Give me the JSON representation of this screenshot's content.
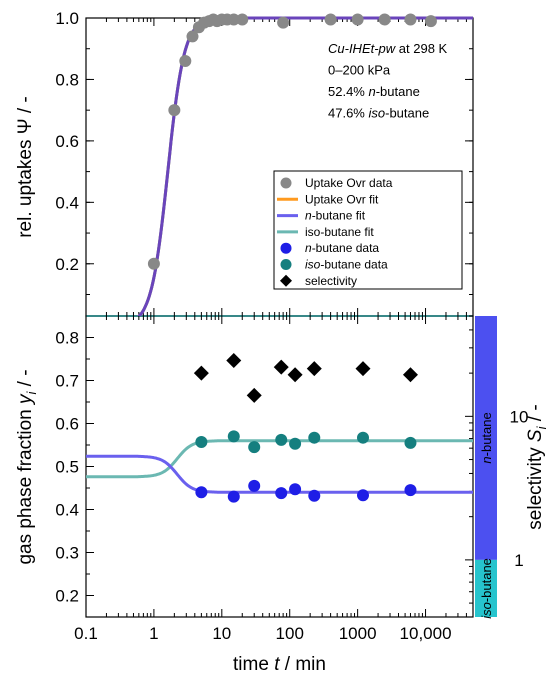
{
  "chart_data": [
    {
      "type": "scatter",
      "panel": "top",
      "ylabel_pre": "rel. uptakes ",
      "ylabel_sym": "Ψ",
      "ylabel_post": " / -",
      "ylim": [
        0.03,
        1.0
      ],
      "yticks": [
        0.2,
        0.4,
        0.6,
        0.8,
        1.0
      ],
      "yticklabels": [
        "0.2",
        "0.4",
        "0.6",
        "0.8",
        "1.0"
      ],
      "xscale": "log",
      "xlim": [
        0.1,
        50000
      ],
      "annotation": [
        {
          "parts": [
            {
              "t": "Cu-IHEt-pw",
              "i": true
            },
            {
              "t": " at 298 K",
              "i": false
            }
          ]
        },
        {
          "parts": [
            {
              "t": "0–200 kPa",
              "i": false
            }
          ]
        },
        {
          "parts": [
            {
              "t": "52.4% ",
              "i": false
            },
            {
              "t": "n",
              "i": true
            },
            {
              "t": "-butane",
              "i": false
            }
          ]
        },
        {
          "parts": [
            {
              "t": "47.6% ",
              "i": false
            },
            {
              "t": "iso",
              "i": true
            },
            {
              "t": "-butane",
              "i": false
            }
          ]
        }
      ],
      "legend_position": "center-right",
      "legend": [
        {
          "kind": "circle",
          "color": "#888888",
          "parts": [
            {
              "t": "Uptake Ovr data",
              "i": false
            }
          ]
        },
        {
          "kind": "line",
          "color": "#ff9a1f",
          "parts": [
            {
              "t": "Uptake Ovr fit",
              "i": false
            }
          ]
        },
        {
          "kind": "line",
          "color": "#6a60ee",
          "parts": [
            {
              "t": "n",
              "i": true
            },
            {
              "t": "-butane fit",
              "i": false
            }
          ]
        },
        {
          "kind": "line",
          "color": "#6bb8b2",
          "parts": [
            {
              "t": "iso-butane fit",
              "i": false
            }
          ]
        },
        {
          "kind": "circle",
          "color": "#1e1ee6",
          "parts": [
            {
              "t": "n",
              "i": true
            },
            {
              "t": "-butane data",
              "i": false
            }
          ]
        },
        {
          "kind": "circle",
          "color": "#157f7f",
          "parts": [
            {
              "t": "iso",
              "i": true
            },
            {
              "t": "-butane data",
              "i": false
            }
          ]
        },
        {
          "kind": "diamond",
          "color": "#000000",
          "parts": [
            {
              "t": "selectivity",
              "i": false
            }
          ]
        }
      ],
      "uptake_data": {
        "x": [
          1.0,
          2.0,
          2.9,
          3.7,
          4.6,
          5.5,
          6.5,
          7.5,
          8.5,
          10,
          12,
          15,
          20,
          80,
          400,
          1000,
          2500,
          6000,
          12000
        ],
        "y": [
          0.2,
          0.7,
          0.86,
          0.94,
          0.97,
          0.985,
          0.99,
          0.995,
          0.99,
          0.995,
          0.995,
          0.995,
          0.995,
          0.985,
          0.995,
          0.995,
          0.995,
          0.995,
          0.99
        ]
      },
      "uptake_fit": {
        "x0": 1.6,
        "k": 3.6
      }
    },
    {
      "type": "scatter",
      "panel": "bottom",
      "xlabel_pre": "time ",
      "xlabel_sym": "t",
      "xlabel_post": " / min",
      "ylabel_pre": "gas phase fraction ",
      "ylabel_sym": "y",
      "ylabel_sub": "i",
      "ylabel_post": " / -",
      "ylim": [
        0.15,
        0.85
      ],
      "yticks": [
        0.2,
        0.3,
        0.4,
        0.5,
        0.6,
        0.7,
        0.8
      ],
      "yticklabels": [
        "0.2",
        "0.3",
        "0.4",
        "0.5",
        "0.6",
        "0.7",
        "0.8"
      ],
      "xscale": "log",
      "xlim": [
        0.1,
        50000
      ],
      "xticks": [
        0.1,
        1,
        10,
        100,
        1000,
        10000
      ],
      "xticklabels": [
        "0.1",
        "1",
        "10",
        "100",
        "1000",
        "10,000"
      ],
      "y2label_pre": "selectivity ",
      "y2label_sym": "S",
      "y2label_sub": "i",
      "y2label_post": " / -",
      "y2scale": "log",
      "y2lim": [
        0.4,
        50
      ],
      "y2ticks": [
        1,
        10
      ],
      "y2ticklabels": [
        "1",
        "10"
      ],
      "bands": [
        {
          "label": "n-butane",
          "from": 1,
          "to": 50,
          "color": "#4c50f0"
        },
        {
          "label": "iso-butane",
          "from": 0.4,
          "to": 1,
          "color": "#26c4cd"
        }
      ],
      "n_data": {
        "x": [
          5,
          15,
          30,
          75,
          120,
          230,
          1200,
          6000
        ],
        "y": [
          0.44,
          0.43,
          0.455,
          0.438,
          0.447,
          0.432,
          0.433,
          0.445
        ]
      },
      "iso_data": {
        "x": [
          5,
          15,
          30,
          75,
          120,
          230,
          1200,
          6000
        ],
        "y": [
          0.557,
          0.57,
          0.545,
          0.562,
          0.553,
          0.567,
          0.567,
          0.555
        ]
      },
      "selectivity": {
        "x": [
          5,
          15,
          30,
          75,
          120,
          230,
          1200,
          6000
        ],
        "y": [
          20,
          24.5,
          14,
          22,
          19.5,
          21.5,
          21.5,
          19.5
        ]
      },
      "n_fit": {
        "start": 0.524,
        "end": 0.44,
        "x0": 2.2,
        "k": 4
      },
      "iso_fit": {
        "start": 0.476,
        "end": 0.56,
        "x0": 2.2,
        "k": 4
      }
    }
  ]
}
